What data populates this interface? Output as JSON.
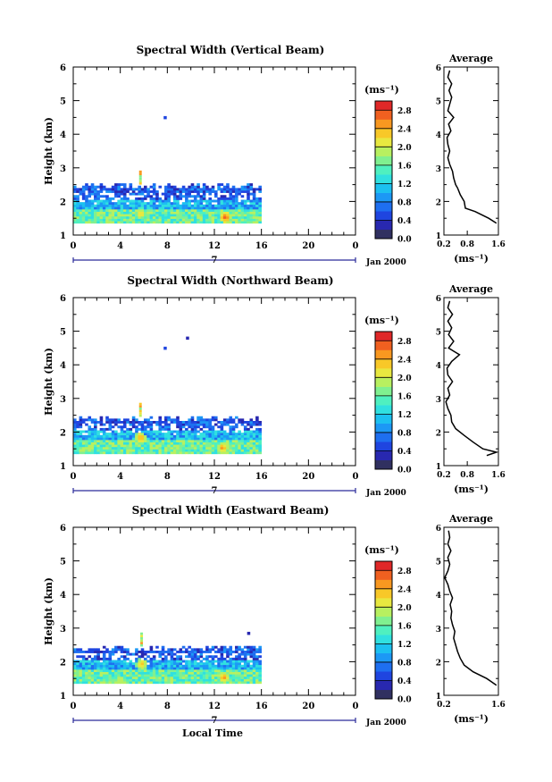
{
  "chart_data": [
    {
      "type": "heatmap",
      "title": "Spectral Width (Vertical Beam)",
      "ylabel": "Height (km)",
      "xlabel": "",
      "xlim": [
        0,
        24
      ],
      "ylim": [
        1,
        6
      ],
      "xticks": [
        "0",
        "4",
        "8",
        "12",
        "16",
        "20",
        "0"
      ],
      "yticks": [
        "1",
        "2",
        "3",
        "4",
        "5",
        "6"
      ],
      "date_label": "7",
      "date_suffix": "Jan 2000",
      "colorbar": {
        "label": "(ms⁻¹)",
        "ticks": [
          "0.0",
          "0.4",
          "0.8",
          "1.2",
          "1.6",
          "2.0",
          "2.4",
          "2.8"
        ],
        "range": [
          0,
          3.0
        ]
      },
      "data_extent": {
        "x": [
          0,
          16
        ],
        "y": [
          1.35,
          2.5
        ]
      },
      "hotspots": [
        {
          "x": 5.6,
          "y": 1.6,
          "v": 2.4
        },
        {
          "x": 12.8,
          "y": 1.5,
          "v": 2.8
        }
      ],
      "isolated_points": [
        {
          "x": 7.8,
          "y": 4.5,
          "v": 0.5
        }
      ],
      "profile": {
        "title": "Average",
        "xlabel": "(ms⁻¹)",
        "xlim": [
          0.2,
          1.6
        ],
        "xticks": [
          "0.2",
          "0.8",
          "1.6"
        ],
        "yticks": [
          "1",
          "2",
          "3",
          "4",
          "5",
          "6"
        ],
        "height": [
          1.35,
          1.5,
          1.7,
          1.8,
          2.0,
          2.2,
          2.4,
          2.5,
          2.7,
          2.9,
          3.1,
          3.3,
          3.5,
          3.7,
          3.9,
          4.1,
          4.3,
          4.5,
          4.7,
          4.9,
          5.1,
          5.3,
          5.5,
          5.7,
          5.9
        ],
        "value": [
          1.55,
          1.35,
          1.0,
          0.75,
          0.72,
          0.62,
          0.55,
          0.5,
          0.45,
          0.42,
          0.35,
          0.3,
          0.35,
          0.3,
          0.28,
          0.38,
          0.32,
          0.45,
          0.3,
          0.35,
          0.4,
          0.33,
          0.4,
          0.3,
          0.35
        ]
      }
    },
    {
      "type": "heatmap",
      "title": "Spectral Width (Northward Beam)",
      "ylabel": "Height (km)",
      "xlabel": "",
      "xlim": [
        0,
        24
      ],
      "ylim": [
        1,
        6
      ],
      "xticks": [
        "0",
        "4",
        "8",
        "12",
        "16",
        "20",
        "0"
      ],
      "yticks": [
        "1",
        "2",
        "3",
        "4",
        "5",
        "6"
      ],
      "date_label": "7",
      "date_suffix": "Jan 2000",
      "colorbar": {
        "label": "(ms⁻¹)",
        "ticks": [
          "0.0",
          "0.4",
          "0.8",
          "1.2",
          "1.6",
          "2.0",
          "2.4",
          "2.8"
        ],
        "range": [
          0,
          3.0
        ]
      },
      "data_extent": {
        "x": [
          0,
          16
        ],
        "y": [
          1.35,
          2.45
        ]
      },
      "hotspots": [
        {
          "x": 5.6,
          "y": 1.8,
          "v": 2.6
        },
        {
          "x": 12.6,
          "y": 1.5,
          "v": 2.6
        }
      ],
      "isolated_points": [
        {
          "x": 7.8,
          "y": 4.5,
          "v": 0.5
        },
        {
          "x": 9.7,
          "y": 4.8,
          "v": 0.3
        }
      ],
      "profile": {
        "title": "Average",
        "xlabel": "(ms⁻¹)",
        "xlim": [
          0.2,
          1.6
        ],
        "xticks": [
          "0.2",
          "0.8",
          "1.6"
        ],
        "yticks": [
          "1",
          "2",
          "3",
          "4",
          "5",
          "6"
        ],
        "height": [
          1.3,
          1.4,
          1.5,
          1.7,
          1.9,
          2.1,
          2.3,
          2.5,
          2.7,
          2.9,
          3.1,
          3.3,
          3.5,
          3.7,
          3.9,
          4.1,
          4.3,
          4.5,
          4.7,
          4.9,
          5.1,
          5.3,
          5.5,
          5.7,
          5.9
        ],
        "value": [
          1.3,
          1.55,
          1.2,
          0.95,
          0.72,
          0.5,
          0.4,
          0.38,
          0.3,
          0.25,
          0.35,
          0.3,
          0.42,
          0.3,
          0.28,
          0.4,
          0.6,
          0.32,
          0.45,
          0.32,
          0.4,
          0.3,
          0.42,
          0.3,
          0.35
        ]
      }
    },
    {
      "type": "heatmap",
      "title": "Spectral Width (Eastward Beam)",
      "ylabel": "Height (km)",
      "xlabel": "Local Time",
      "xlim": [
        0,
        24
      ],
      "ylim": [
        1,
        6
      ],
      "xticks": [
        "0",
        "4",
        "8",
        "12",
        "16",
        "20",
        "0"
      ],
      "yticks": [
        "1",
        "2",
        "3",
        "4",
        "5",
        "6"
      ],
      "date_label": "7",
      "date_suffix": "Jan 2000",
      "colorbar": {
        "label": "(ms⁻¹)",
        "ticks": [
          "0.0",
          "0.4",
          "0.8",
          "1.2",
          "1.6",
          "2.0",
          "2.4",
          "2.8"
        ],
        "range": [
          0,
          3.0
        ]
      },
      "data_extent": {
        "x": [
          0,
          16
        ],
        "y": [
          1.35,
          2.45
        ]
      },
      "hotspots": [
        {
          "x": 5.7,
          "y": 1.9,
          "v": 2.5
        },
        {
          "x": 12.7,
          "y": 1.5,
          "v": 2.6
        }
      ],
      "isolated_points": [
        {
          "x": 14.9,
          "y": 2.85,
          "v": 0.3
        }
      ],
      "profile": {
        "title": "Average",
        "xlabel": "(ms⁻¹)",
        "xlim": [
          0.2,
          1.6
        ],
        "xticks": [
          "0.2",
          "1.6"
        ],
        "yticks": [
          "1",
          "2",
          "3",
          "4",
          "5",
          "6"
        ],
        "height": [
          1.3,
          1.5,
          1.7,
          1.9,
          2.1,
          2.3,
          2.5,
          2.7,
          2.9,
          3.1,
          3.3,
          3.5,
          3.7,
          3.9,
          4.1,
          4.3,
          4.5,
          4.7,
          4.9,
          5.1,
          5.3,
          5.5,
          5.7,
          5.9
        ],
        "value": [
          1.55,
          1.3,
          0.95,
          0.72,
          0.62,
          0.55,
          0.5,
          0.45,
          0.48,
          0.42,
          0.38,
          0.4,
          0.36,
          0.42,
          0.35,
          0.3,
          0.22,
          0.3,
          0.35,
          0.3,
          0.38,
          0.3,
          0.35,
          0.32
        ]
      }
    }
  ]
}
